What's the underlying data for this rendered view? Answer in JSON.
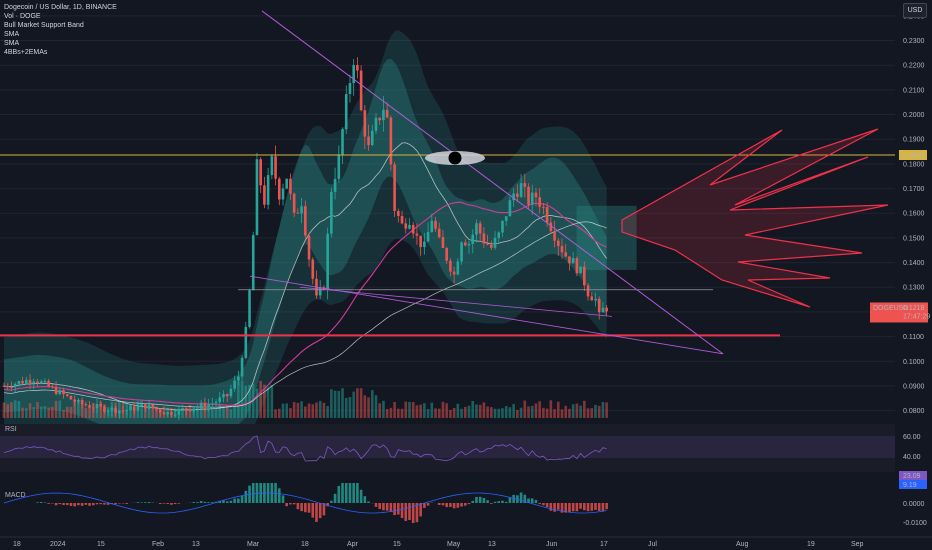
{
  "legend": {
    "symbol": "Dogecoin / US Dollar, 1D, BINANCE",
    "indicators": [
      "Vol · DOGE",
      "Bull Market Support Band",
      "SMA",
      "SMA",
      "4BBs+2EMAs"
    ]
  },
  "currency_button": "USD",
  "colors": {
    "background": "#131722",
    "up": "#26a69a",
    "down": "#ef5350",
    "band_fill": "#2b8c88",
    "trend_purple": "#b05bd6",
    "horizontal_yellow": "#d8b43c",
    "support_red": "#f0314a",
    "sma_white": "#d9d9d9",
    "sma_pink": "#d43a9a",
    "rsi_purple": "#7e57c2",
    "macd_blue": "#2962ff"
  },
  "price_axis": {
    "ticks": [
      "0.2400",
      "0.2300",
      "0.2200",
      "0.2100",
      "0.2000",
      "0.1900",
      "0.1800",
      "0.1700",
      "0.1600",
      "0.1500",
      "0.1400",
      "0.1300",
      "0.1200",
      "0.1100",
      "0.1000",
      "0.0900",
      "0.0800"
    ],
    "highlighted_label": "0.1836",
    "last_price_label": "0.1218",
    "symbol_tag": "DOGEUSD",
    "countdown": "17:47:29"
  },
  "rsi_pane": {
    "label": "RSI",
    "ticks": [
      "60.00",
      "40.00"
    ],
    "value_labels": [
      "23.09",
      "9.19"
    ]
  },
  "macd_pane": {
    "label": "MACD",
    "ticks": [
      "0.0000",
      "-0.0100"
    ]
  },
  "time_axis": {
    "labels": [
      "18",
      "2024",
      "15",
      "Feb",
      "13",
      "Mar",
      "18",
      "Apr",
      "15",
      "May",
      "13",
      "Jun",
      "17",
      "Jul",
      "Aug",
      "19",
      "Sep"
    ]
  },
  "chart_data": {
    "type": "candlestick",
    "title": "Dogecoin / US Dollar, 1D, BINANCE",
    "ylim": [
      0.077,
      0.244
    ],
    "horizontal_levels": [
      {
        "price": 0.1836,
        "color": "#d8b43c",
        "label": "0.1836"
      },
      {
        "price": 0.129,
        "color": "#9598a1"
      },
      {
        "price": 0.1105,
        "color": "#f0314a"
      }
    ],
    "last_price": 0.1218,
    "key_points": [
      {
        "period": "Dec 2023 - Feb 2024",
        "approx_range": [
          0.078,
          0.095
        ]
      },
      {
        "period": "early Mar 2024",
        "approx_high": 0.185
      },
      {
        "period": "late Mar 2024",
        "approx_high": 0.228
      },
      {
        "period": "mid Apr 2024",
        "approx_low": 0.142
      },
      {
        "period": "late May 2024",
        "approx_high": 0.175
      },
      {
        "period": "mid Jun 2024",
        "approx_low": 0.115
      }
    ]
  }
}
